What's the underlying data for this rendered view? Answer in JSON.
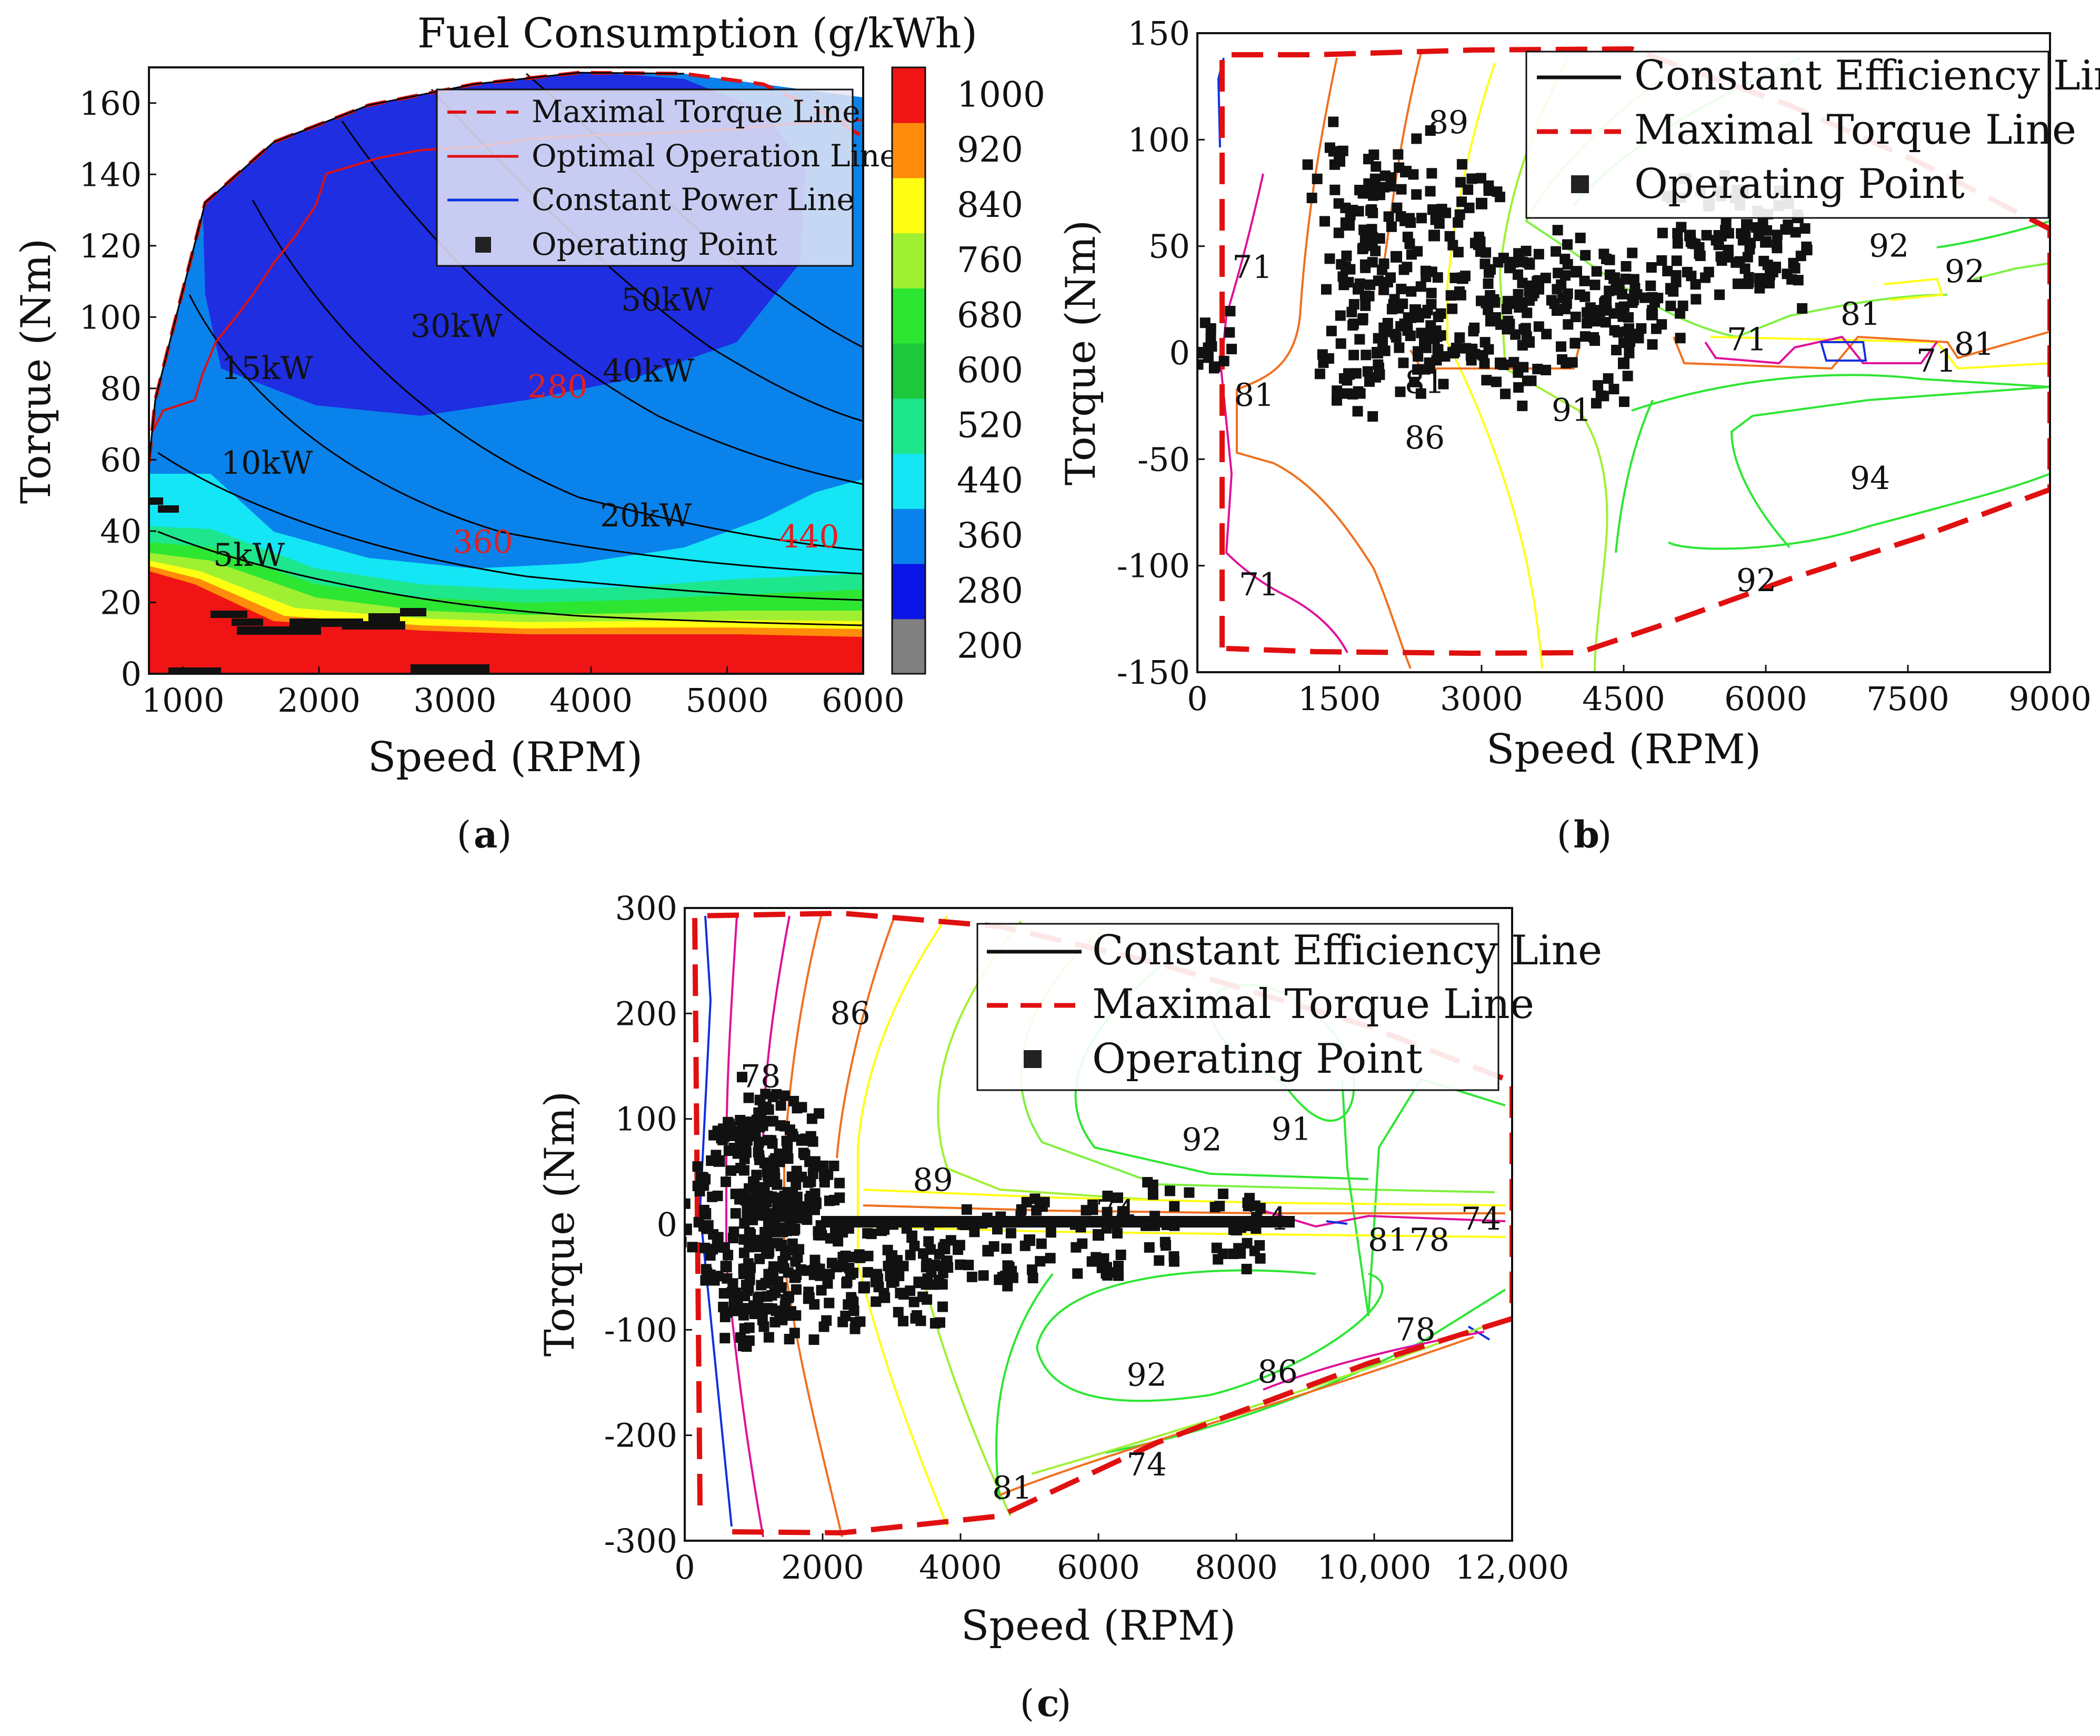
{
  "chart_data": [
    {
      "id": "a",
      "type": "contour",
      "caption": "a",
      "title": "Fuel Consumption (g/kWh)",
      "xlabel": "Speed (RPM)",
      "ylabel": "Torque (Nm)",
      "xlim": [
        750,
        6000
      ],
      "ylim": [
        0,
        170
      ],
      "xticks": [
        "1000",
        "2000",
        "3000",
        "4000",
        "5000",
        "6000"
      ],
      "yticks": [
        "0",
        "20",
        "40",
        "60",
        "80",
        "100",
        "120",
        "140",
        "160"
      ],
      "colorbar": {
        "levels": [
          200,
          280,
          360,
          440,
          520,
          600,
          680,
          760,
          840,
          920,
          1000
        ],
        "labels": [
          "200",
          "280",
          "360",
          "440",
          "520",
          "600",
          "680",
          "760",
          "840",
          "920",
          "1000"
        ],
        "colors": [
          "#808080",
          "#0a14e6",
          "#0a82eb",
          "#14e6f5",
          "#1ee68c",
          "#1ec83c",
          "#2de632",
          "#a0f032",
          "#ffff14",
          "#ff8c0a",
          "#f01414"
        ]
      },
      "legend": [
        "Maximal Torque Line",
        "Optimal Operation Line",
        "Constant Power Line",
        "Operating Point"
      ],
      "power_labels": [
        "5kW",
        "10kW",
        "15kW",
        "20kW",
        "30kW",
        "40kW",
        "50kW"
      ],
      "power_values_kw": [
        5,
        10,
        15,
        20,
        30,
        40,
        50
      ],
      "contour_labels": [
        "280",
        "360",
        "440"
      ],
      "max_torque_line": [
        [
          750,
          68
        ],
        [
          800,
          78
        ],
        [
          900,
          100
        ],
        [
          1000,
          125
        ],
        [
          1100,
          137
        ],
        [
          1500,
          150
        ],
        [
          2000,
          158
        ],
        [
          2500,
          162
        ],
        [
          3000,
          165
        ],
        [
          3500,
          168
        ],
        [
          4000,
          169
        ],
        [
          4500,
          168
        ],
        [
          5000,
          165
        ],
        [
          5500,
          160
        ],
        [
          6000,
          155
        ]
      ],
      "optimal_operation_line": [
        [
          760,
          62
        ],
        [
          850,
          76
        ],
        [
          1100,
          83
        ],
        [
          1200,
          90
        ],
        [
          1300,
          100
        ],
        [
          1450,
          108
        ],
        [
          1600,
          114
        ],
        [
          1900,
          126
        ],
        [
          2300,
          136
        ],
        [
          3000,
          141
        ],
        [
          3600,
          143
        ],
        [
          4200,
          145
        ],
        [
          5000,
          150
        ],
        [
          5500,
          152
        ],
        [
          6000,
          154
        ]
      ],
      "operating_points": [
        [
          780,
          48
        ],
        [
          820,
          47
        ],
        [
          860,
          46
        ],
        [
          900,
          45
        ],
        [
          1000,
          1
        ],
        [
          1100,
          1
        ],
        [
          1200,
          1
        ],
        [
          1300,
          13
        ],
        [
          1400,
          15
        ],
        [
          1500,
          17
        ],
        [
          1500,
          12
        ],
        [
          1700,
          12
        ],
        [
          1900,
          12
        ],
        [
          2000,
          14
        ],
        [
          2200,
          14
        ],
        [
          2400,
          14
        ],
        [
          2500,
          16
        ],
        [
          2700,
          18
        ],
        [
          2800,
          18
        ],
        [
          2700,
          3
        ],
        [
          2900,
          3
        ],
        [
          3100,
          3
        ]
      ]
    },
    {
      "id": "b",
      "type": "contour",
      "caption": "b",
      "xlabel": "Speed (RPM)",
      "ylabel": "Torque (Nm)",
      "xlim": [
        0,
        9000
      ],
      "ylim": [
        -150,
        150
      ],
      "xticks": [
        "0",
        "1500",
        "3000",
        "4500",
        "6000",
        "7500",
        "9000"
      ],
      "yticks": [
        "-150",
        "-100",
        "-50",
        "0",
        "50",
        "100",
        "150"
      ],
      "legend": [
        "Constant Efficiency Line",
        "Maximal Torque Line",
        "Operating Point"
      ],
      "efficiency_labels": [
        {
          "text": "89",
          "x": 2650,
          "y": 108
        },
        {
          "text": "71",
          "x": 580,
          "y": 40
        },
        {
          "text": "92",
          "x": 7300,
          "y": 50
        },
        {
          "text": "92",
          "x": 8100,
          "y": 38
        },
        {
          "text": "81",
          "x": 7000,
          "y": 18
        },
        {
          "text": "71",
          "x": 5800,
          "y": 6
        },
        {
          "text": "71",
          "x": 7800,
          "y": -4
        },
        {
          "text": "81",
          "x": 8200,
          "y": 4
        },
        {
          "text": "81",
          "x": 2400,
          "y": -14
        },
        {
          "text": "81",
          "x": 600,
          "y": -20
        },
        {
          "text": "86",
          "x": 2400,
          "y": -40
        },
        {
          "text": "91",
          "x": 3950,
          "y": -27
        },
        {
          "text": "94",
          "x": 7100,
          "y": -59
        },
        {
          "text": "92",
          "x": 5900,
          "y": -107
        },
        {
          "text": "71",
          "x": 650,
          "y": -109
        }
      ],
      "max_torque_line": [
        [
          200,
          -138
        ],
        [
          200,
          140
        ],
        [
          900,
          141
        ],
        [
          2000,
          143
        ],
        [
          3200,
          144
        ],
        [
          5000,
          130
        ],
        [
          7000,
          100
        ],
        [
          9000,
          55
        ],
        [
          9000,
          -65
        ],
        [
          7000,
          -100
        ],
        [
          5000,
          -128
        ],
        [
          4000,
          -140
        ],
        [
          3000,
          -143
        ],
        [
          2000,
          -142
        ],
        [
          1000,
          -141
        ],
        [
          250,
          -140
        ]
      ],
      "operating_points": [
        [
          1500,
          90
        ],
        [
          1600,
          60
        ],
        [
          1700,
          30
        ],
        [
          1800,
          75
        ],
        [
          2000,
          10
        ],
        [
          2100,
          45
        ],
        [
          2200,
          85
        ],
        [
          2300,
          20
        ],
        [
          2500,
          55
        ],
        [
          2700,
          0
        ],
        [
          2800,
          35
        ],
        [
          3000,
          70
        ],
        [
          3100,
          15
        ],
        [
          3300,
          40
        ],
        [
          3500,
          5
        ],
        [
          3600,
          30
        ],
        [
          3800,
          20
        ],
        [
          4000,
          38
        ],
        [
          4200,
          15
        ],
        [
          4400,
          35
        ],
        [
          4600,
          25
        ],
        [
          4800,
          18
        ],
        [
          5000,
          30
        ],
        [
          5200,
          55
        ],
        [
          5400,
          70
        ],
        [
          5600,
          45
        ],
        [
          5800,
          60
        ],
        [
          6000,
          52
        ],
        [
          6100,
          40
        ],
        [
          1600,
          -10
        ],
        [
          1900,
          0
        ],
        [
          2400,
          5
        ],
        [
          3200,
          -5
        ],
        [
          4500,
          -5
        ],
        [
          50,
          0
        ]
      ]
    },
    {
      "id": "c",
      "type": "contour",
      "caption": "c",
      "xlabel": "Speed (RPM)",
      "ylabel": "Torque (Nm)",
      "xlim": [
        0,
        12000
      ],
      "ylim": [
        -300,
        300
      ],
      "xticks": [
        "0",
        "2000",
        "4000",
        "6000",
        "8000",
        "10,000",
        "12,000"
      ],
      "yticks": [
        "-300",
        "-200",
        "-100",
        "0",
        "100",
        "200",
        "300"
      ],
      "legend": [
        "Constant Efficiency Line",
        "Maximal Torque Line",
        "Operating Point"
      ],
      "efficiency_labels": [
        {
          "text": "86",
          "x": 2400,
          "y": 200
        },
        {
          "text": "78",
          "x": 1100,
          "y": 140
        },
        {
          "text": "92",
          "x": 7500,
          "y": 80
        },
        {
          "text": "91",
          "x": 8800,
          "y": 90
        },
        {
          "text": "89",
          "x": 3600,
          "y": 42
        },
        {
          "text": "74",
          "x": 6250,
          "y": 12
        },
        {
          "text": "74",
          "x": 8450,
          "y": 5
        },
        {
          "text": "81",
          "x": 10200,
          "y": -15
        },
        {
          "text": "78",
          "x": 10800,
          "y": -15
        },
        {
          "text": "74",
          "x": 11550,
          "y": 5
        },
        {
          "text": "78",
          "x": 10600,
          "y": -100
        },
        {
          "text": "92",
          "x": 6700,
          "y": -143
        },
        {
          "text": "86",
          "x": 8600,
          "y": -140
        },
        {
          "text": "74",
          "x": 6700,
          "y": -228
        },
        {
          "text": "81",
          "x": 4750,
          "y": -250
        }
      ],
      "max_torque_line": [
        [
          150,
          -290
        ],
        [
          150,
          290
        ],
        [
          1000,
          293
        ],
        [
          3000,
          288
        ],
        [
          4500,
          270
        ],
        [
          7000,
          210
        ],
        [
          10000,
          140
        ],
        [
          12000,
          100
        ],
        [
          12000,
          -95
        ],
        [
          10000,
          -130
        ],
        [
          7000,
          -200
        ],
        [
          4000,
          -285
        ],
        [
          2000,
          -292
        ],
        [
          750,
          -291
        ]
      ],
      "operating_points": [
        [
          900,
          80
        ],
        [
          1000,
          40
        ],
        [
          1100,
          100
        ],
        [
          1200,
          10
        ],
        [
          1300,
          60
        ],
        [
          1400,
          -20
        ],
        [
          1500,
          30
        ],
        [
          1600,
          -50
        ],
        [
          1700,
          80
        ],
        [
          1800,
          -70
        ],
        [
          1900,
          20
        ],
        [
          2200,
          -40
        ],
        [
          2600,
          -60
        ],
        [
          3000,
          -30
        ],
        [
          3400,
          -55
        ],
        [
          3800,
          -35
        ],
        [
          4400,
          -25
        ],
        [
          5000,
          -15
        ],
        [
          6000,
          -10
        ],
        [
          7000,
          0
        ],
        [
          8000,
          -5
        ],
        [
          900,
          -80
        ],
        [
          1200,
          -80
        ],
        [
          500,
          60
        ],
        [
          600,
          -40
        ],
        [
          300,
          10
        ]
      ],
      "horizontal_operating_band": {
        "x_start": 2000,
        "x_end": 8800,
        "y": 0
      }
    }
  ]
}
